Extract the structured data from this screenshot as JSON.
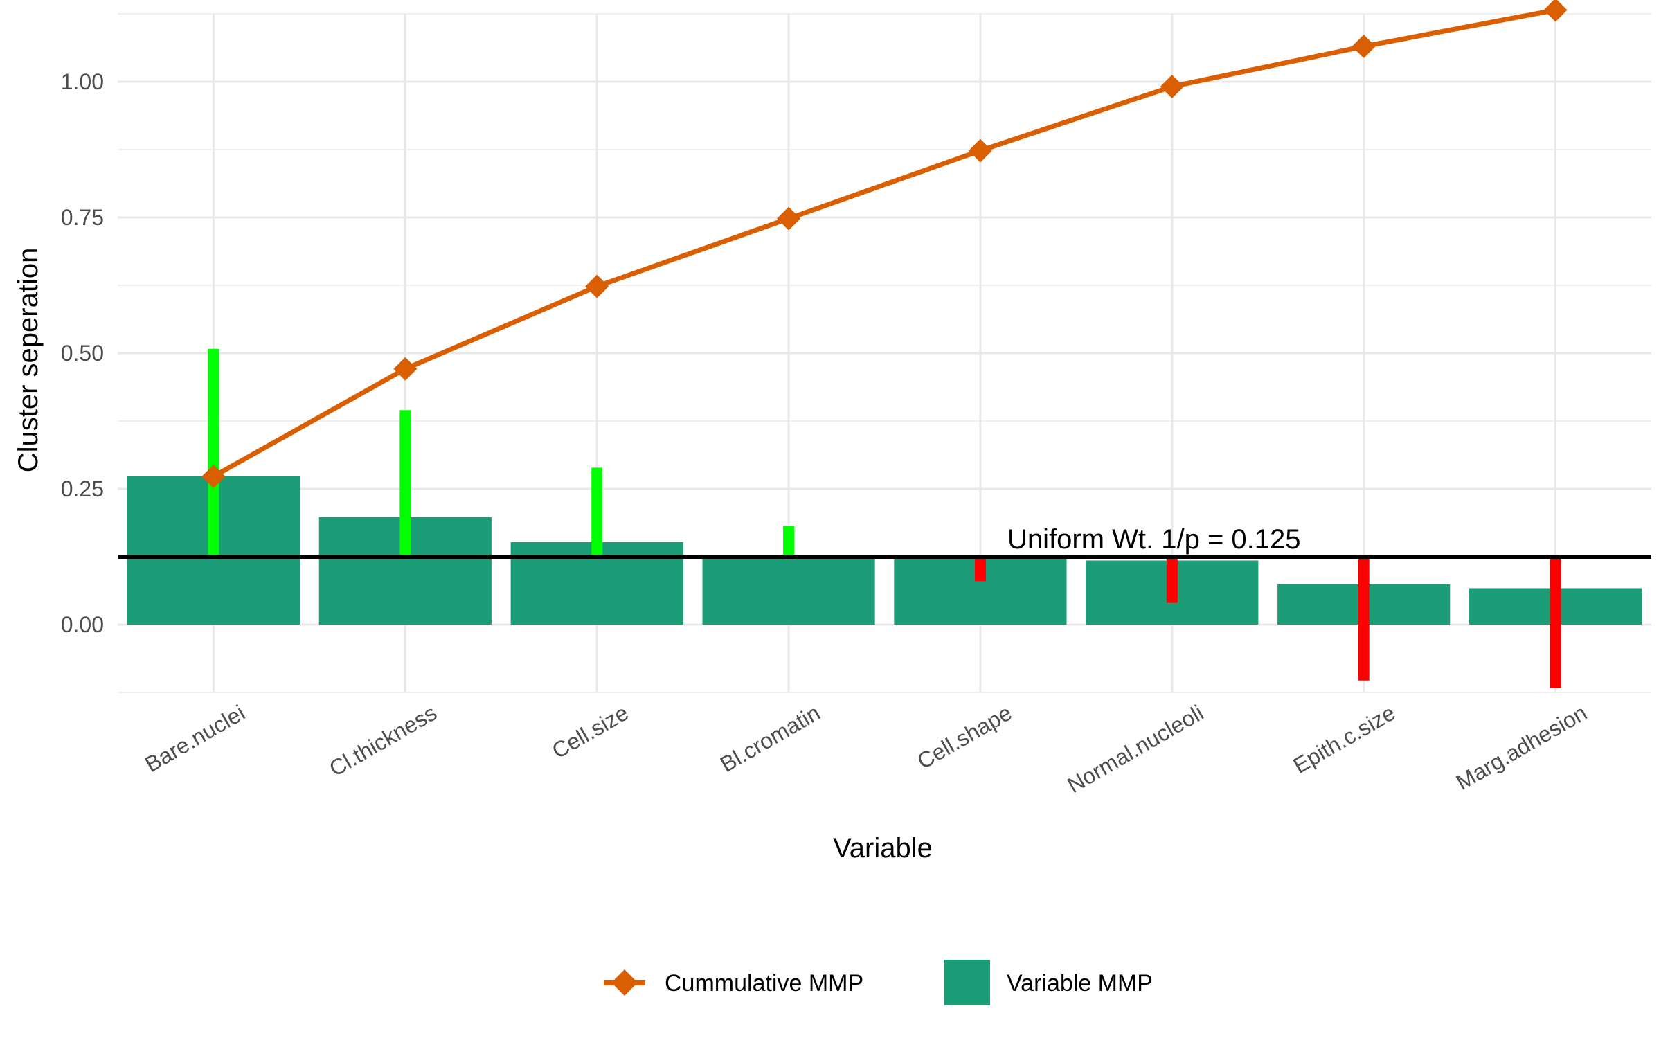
{
  "chart_data": {
    "type": "bar",
    "title": "",
    "xlabel": "Variable",
    "ylabel": "Cluster seperation",
    "ylim": [
      -0.125,
      1.125
    ],
    "yticks": [
      0.0,
      0.25,
      0.5,
      0.75,
      1.0
    ],
    "ytick_labels": [
      "0.00",
      "0.25",
      "0.50",
      "0.75",
      "1.00"
    ],
    "grid": true,
    "categories": [
      "Bare.nuclei",
      "Cl.thickness",
      "Cell.size",
      "Bl.cromatin",
      "Cell.shape",
      "Normal.nucleoli",
      "Epith.c.size",
      "Marg.adhesion"
    ],
    "series": [
      {
        "name": "Variable MMP",
        "kind": "bar",
        "color": "#1b9e77",
        "values": [
          0.273,
          0.198,
          0.152,
          0.125,
          0.125,
          0.118,
          0.074,
          0.067
        ]
      },
      {
        "name": "Cummulative MMP",
        "kind": "line",
        "marker": "diamond",
        "color": "#d95f02",
        "values": [
          0.273,
          0.471,
          0.623,
          0.748,
          0.873,
          0.991,
          1.065,
          1.132
        ]
      }
    ],
    "deviation_segments": {
      "baseline": 0.125,
      "ends": [
        0.508,
        0.395,
        0.289,
        0.182,
        0.08,
        0.04,
        -0.103,
        -0.117
      ],
      "positive_color": "#00ff00",
      "negative_color": "#ff0000"
    },
    "reference_line": {
      "value": 0.125,
      "label": "Uniform Wt. 1/p = 0.125",
      "color": "#000000"
    },
    "legend": {
      "position": "bottom"
    }
  }
}
